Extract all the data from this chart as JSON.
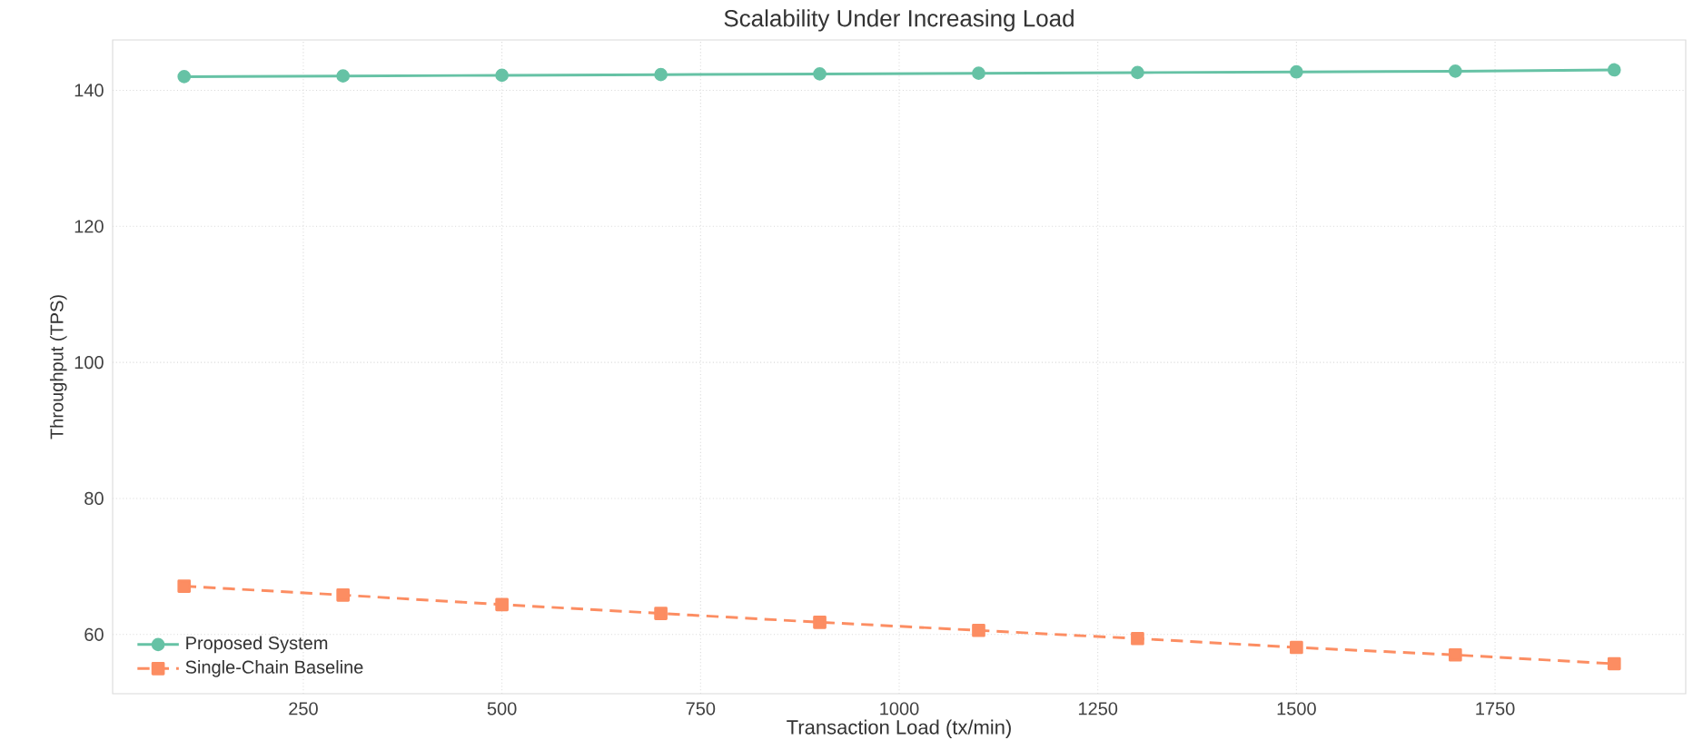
{
  "chart_data": {
    "type": "line",
    "title": "Scalability Under Increasing Load",
    "xlabel": "Transaction Load (tx/min)",
    "ylabel": "Throughput (TPS)",
    "x": [
      100,
      300,
      500,
      700,
      900,
      1100,
      1300,
      1500,
      1700,
      1900
    ],
    "series": [
      {
        "name": "Proposed System",
        "color": "#66c2a5",
        "marker": "circle",
        "line_style": "solid",
        "values": [
          142.0,
          142.1,
          142.2,
          142.3,
          142.4,
          142.5,
          142.6,
          142.7,
          142.8,
          143.0
        ]
      },
      {
        "name": "Single-Chain Baseline",
        "color": "#fc8d62",
        "marker": "square",
        "line_style": "dashed",
        "values": [
          67.1,
          65.8,
          64.4,
          63.1,
          61.8,
          60.6,
          59.4,
          58.1,
          57.0,
          55.7
        ]
      }
    ],
    "xlim": [
      10,
      1990
    ],
    "ylim": [
      51.3,
      147.4
    ],
    "xticks": [
      250,
      500,
      750,
      1000,
      1250,
      1500,
      1750
    ],
    "yticks": [
      60,
      80,
      100,
      120,
      140
    ],
    "grid": true,
    "legend": "bottom left"
  }
}
